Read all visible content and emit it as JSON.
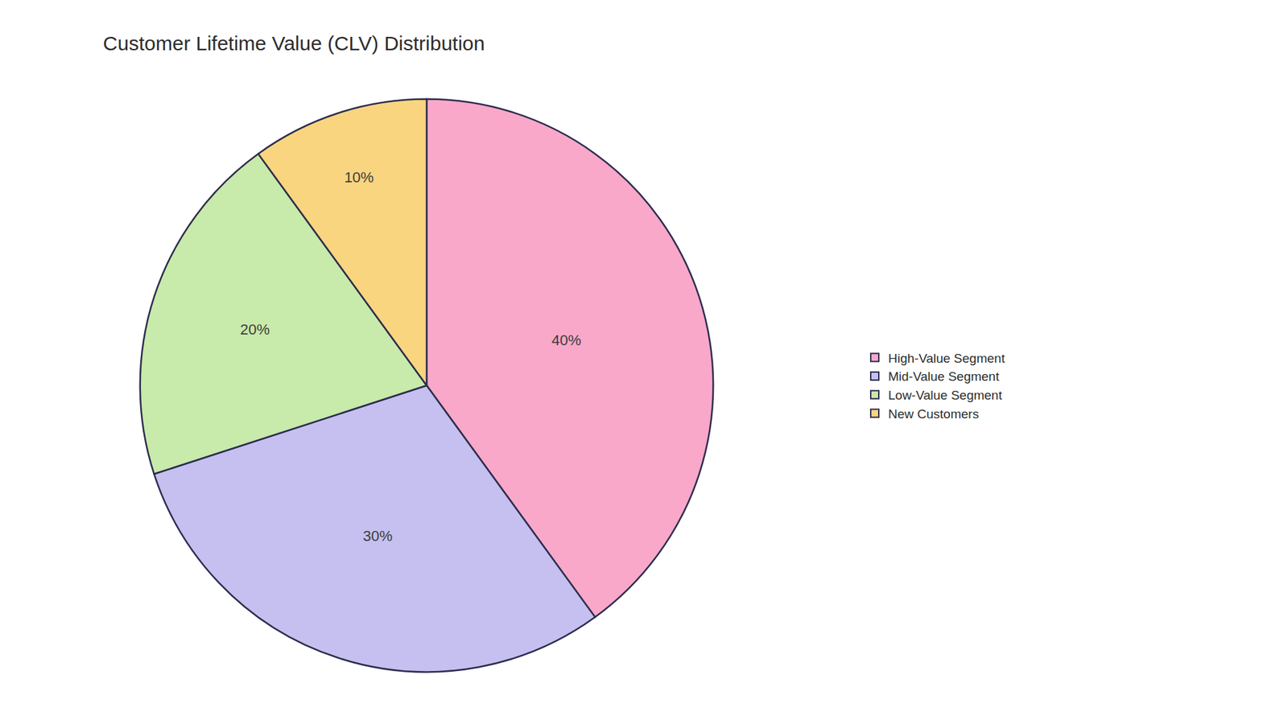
{
  "chart_data": {
    "type": "pie",
    "title": "Customer Lifetime Value (CLV) Distribution",
    "categories": [
      "High-Value Segment",
      "Mid-Value Segment",
      "Low-Value Segment",
      "New Customers"
    ],
    "values": [
      40,
      30,
      20,
      10
    ],
    "value_labels": [
      "40%",
      "30%",
      "20%",
      "10%"
    ],
    "colors": [
      "#F9A8C9",
      "#C5C0F0",
      "#C8EAAA",
      "#F9D580"
    ],
    "data_labels": true,
    "legend": "right"
  }
}
